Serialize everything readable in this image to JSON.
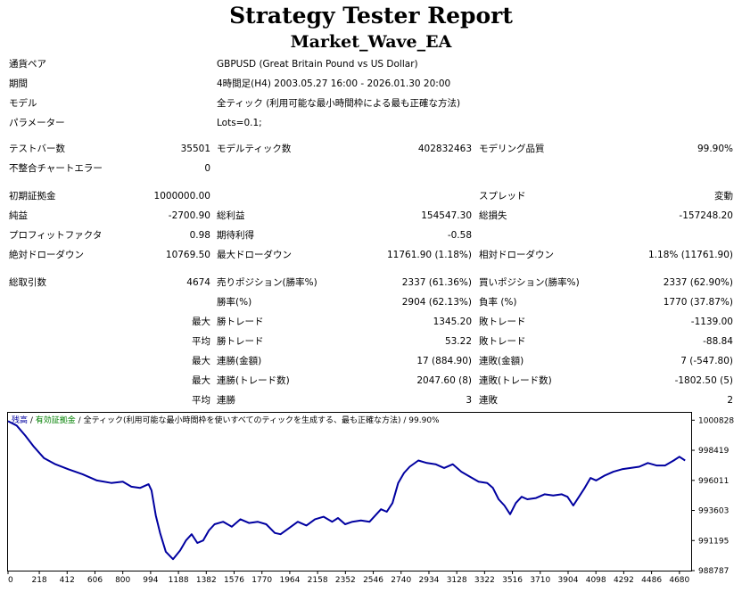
{
  "header": {
    "title": "Strategy Tester Report",
    "subtitle": "Market_Wave_EA"
  },
  "info": [
    {
      "label": "通貨ペア",
      "value": "GBPUSD (Great Britain Pound vs US Dollar)"
    },
    {
      "label": "期間",
      "value": "4時間足(H4) 2003.05.27 16:00 - 2026.01.30 20:00"
    },
    {
      "label": "モデル",
      "value": "全ティック (利用可能な最小時間枠による最も正確な方法)"
    },
    {
      "label": "パラメーター",
      "value": "Lots=0.1;"
    }
  ],
  "stats": {
    "bars_label": "テストバー数",
    "bars_value": "35501",
    "ticks_label": "モデルティック数",
    "ticks_value": "402832463",
    "quality_label": "モデリング品質",
    "quality_value": "99.90%",
    "mismatch_label": "不整合チャートエラー",
    "mismatch_value": "0",
    "deposit_label": "初期証拠金",
    "deposit_value": "1000000.00",
    "spread_label": "スプレッド",
    "spread_value": "変動",
    "net_label": "純益",
    "net_value": "-2700.90",
    "gross_profit_label": "総利益",
    "gross_profit_value": "154547.30",
    "gross_loss_label": "総損失",
    "gross_loss_value": "-157248.20",
    "pf_label": "プロフィットファクタ",
    "pf_value": "0.98",
    "payoff_label": "期待利得",
    "payoff_value": "-0.58",
    "abs_dd_label": "絶対ドローダウン",
    "abs_dd_value": "10769.50",
    "max_dd_label": "最大ドローダウン",
    "max_dd_value": "11761.90 (1.18%)",
    "rel_dd_label": "相対ドローダウン",
    "rel_dd_value": "1.18% (11761.90)",
    "trades_label": "総取引数",
    "trades_value": "4674",
    "short_label": "売りポジション(勝率%)",
    "short_value": "2337 (61.36%)",
    "long_label": "買いポジション(勝率%)",
    "long_value": "2337 (62.90%)",
    "win_pct_label": "勝率(%)",
    "win_pct_value": "2904 (62.13%)",
    "loss_pct_label": "負率 (%)",
    "loss_pct_value": "1770 (37.87%)",
    "max_word": "最大",
    "avg_word": "平均",
    "largest_win_label": "勝トレード",
    "largest_win_value": "1345.20",
    "largest_loss_label": "敗トレード",
    "largest_loss_value": "-1139.00",
    "avg_win_label": "勝トレード",
    "avg_win_value": "53.22",
    "avg_loss_label": "敗トレード",
    "avg_loss_value": "-88.84",
    "max_cons_wins_label": "連勝(金額)",
    "max_cons_wins_value": "17 (884.90)",
    "max_cons_losses_label": "連敗(金額)",
    "max_cons_losses_value": "7 (-547.80)",
    "max_cons_profit_label": "連勝(トレード数)",
    "max_cons_profit_value": "2047.60 (8)",
    "max_cons_loss_label": "連敗(トレード数)",
    "max_cons_loss_value": "-1802.50 (5)",
    "avg_cons_wins_label": "連勝",
    "avg_cons_wins_value": "3",
    "avg_cons_losses_label": "連敗",
    "avg_cons_losses_value": "2"
  },
  "chart_legend": {
    "balance": "残高",
    "sep1": " / ",
    "equity": "有効証拠金",
    "sep2": " / ",
    "model": "全ティック(利用可能な最小時間枠を使いすべてのティックを生成する、最も正確な方法)",
    "sep3": " / ",
    "quality": "99.90%"
  },
  "colors": {
    "balance": "#0000a0",
    "equity": "#008000",
    "axis": "#000000"
  },
  "chart_data": {
    "type": "line",
    "x_ticks": [
      0,
      218,
      412,
      606,
      800,
      994,
      1188,
      1382,
      1576,
      1770,
      1964,
      2158,
      2352,
      2546,
      2740,
      2934,
      3128,
      3322,
      3516,
      3710,
      3904,
      4098,
      4292,
      4486,
      4680
    ],
    "y_ticks": [
      1000828,
      998419,
      996011,
      993603,
      991195,
      988787
    ],
    "xlim": [
      0,
      4762
    ],
    "ylim": [
      988787,
      1001420
    ],
    "series": [
      {
        "name": "残高",
        "x": [
          0,
          60,
          120,
          180,
          250,
          330,
          420,
          520,
          620,
          720,
          800,
          860,
          920,
          980,
          1000,
          1030,
          1060,
          1100,
          1150,
          1200,
          1240,
          1280,
          1320,
          1360,
          1400,
          1440,
          1500,
          1560,
          1620,
          1680,
          1740,
          1800,
          1860,
          1900,
          1960,
          2020,
          2080,
          2140,
          2200,
          2260,
          2300,
          2350,
          2400,
          2460,
          2520,
          2560,
          2600,
          2640,
          2680,
          2720,
          2760,
          2800,
          2860,
          2920,
          2980,
          3040,
          3100,
          3160,
          3220,
          3280,
          3340,
          3380,
          3420,
          3460,
          3500,
          3540,
          3580,
          3620,
          3680,
          3740,
          3800,
          3860,
          3900,
          3940,
          3980,
          4020,
          4060,
          4100,
          4160,
          4220,
          4280,
          4340,
          4400,
          4460,
          4520,
          4580,
          4640,
          4680,
          4720
        ],
        "y": [
          1000750,
          1000400,
          999600,
          998700,
          997800,
          997300,
          996900,
          996500,
          996000,
          995800,
          995900,
          995500,
          995400,
          995700,
          995200,
          993200,
          991800,
          990300,
          989700,
          990400,
          991200,
          991700,
          991000,
          991200,
          992000,
          992500,
          992700,
          992300,
          992900,
          992600,
          992700,
          992500,
          991800,
          991700,
          992200,
          992700,
          992400,
          992900,
          993100,
          992700,
          993000,
          992500,
          992700,
          992800,
          992700,
          993200,
          993700,
          993500,
          994200,
          995800,
          996600,
          997100,
          997600,
          997400,
          997300,
          997000,
          997300,
          996700,
          996300,
          995900,
          995800,
          995400,
          994500,
          994000,
          993300,
          994200,
          994700,
          994500,
          994600,
          994900,
          994800,
          994900,
          994700,
          994000,
          994700,
          995400,
          996200,
          996000,
          996400,
          996700,
          996900,
          997000,
          997100,
          997400,
          997200,
          997200,
          997600,
          997900,
          997600
        ]
      }
    ]
  }
}
